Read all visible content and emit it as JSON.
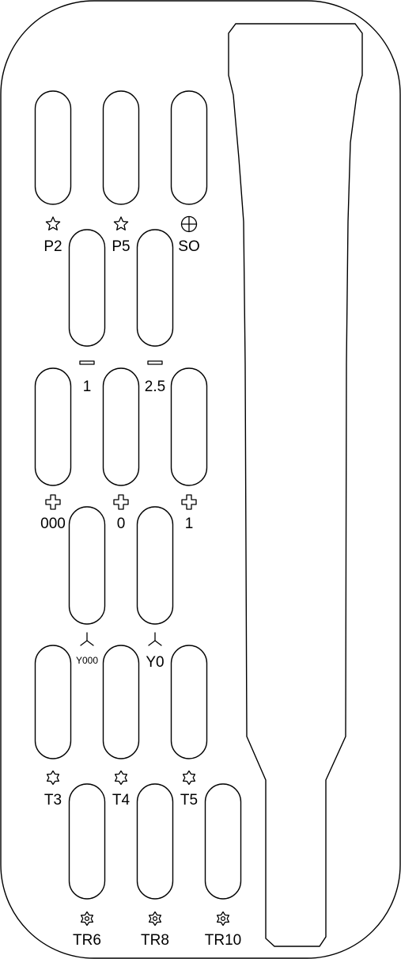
{
  "tray": {
    "slots": [
      {
        "label": "P2",
        "icon": "pentalobe-icon"
      },
      {
        "label": "P5",
        "icon": "pentalobe-icon"
      },
      {
        "label": "SO",
        "icon": "cross-circle-icon"
      },
      {
        "label": "1",
        "icon": "flat-blade-icon"
      },
      {
        "label": "2.5",
        "icon": "flat-blade-icon"
      },
      {
        "label": "000",
        "icon": "phillips-icon"
      },
      {
        "label": "0",
        "icon": "phillips-icon"
      },
      {
        "label": "1",
        "icon": "phillips-icon"
      },
      {
        "label": "Y000",
        "icon": "tri-wing-icon"
      },
      {
        "label": "Y0",
        "icon": "tri-wing-icon"
      },
      {
        "label": "T3",
        "icon": "torx-icon"
      },
      {
        "label": "T4",
        "icon": "torx-icon"
      },
      {
        "label": "T5",
        "icon": "torx-icon"
      },
      {
        "label": "TR6",
        "icon": "torx-security-icon"
      },
      {
        "label": "TR8",
        "icon": "torx-security-icon"
      },
      {
        "label": "TR10",
        "icon": "torx-security-icon"
      }
    ]
  }
}
